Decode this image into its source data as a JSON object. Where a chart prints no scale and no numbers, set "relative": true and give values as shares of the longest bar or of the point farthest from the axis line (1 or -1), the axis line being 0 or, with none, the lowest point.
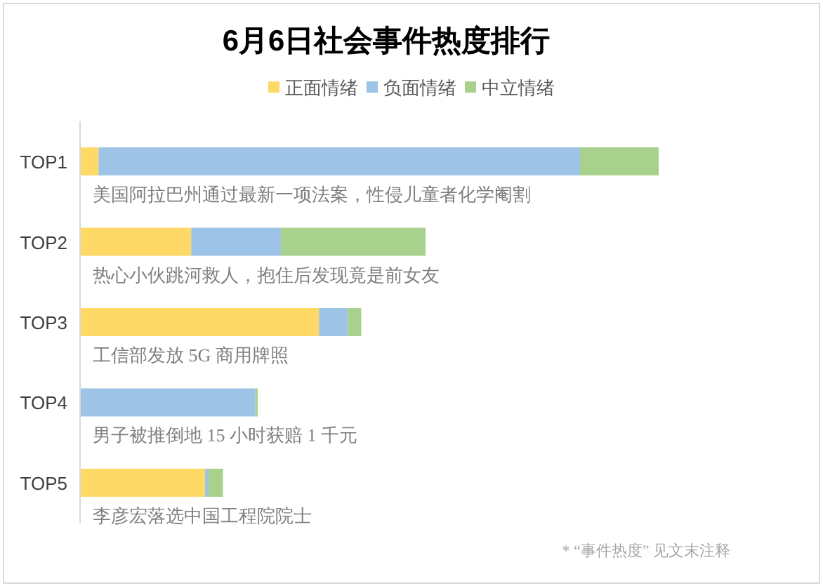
{
  "chart_data": {
    "type": "bar",
    "orientation": "horizontal",
    "stacked": true,
    "relative": true,
    "title": "6月6日社会事件热度排行",
    "legend": "top",
    "categories": [
      "TOP1",
      "TOP2",
      "TOP3",
      "TOP4",
      "TOP5"
    ],
    "series": [
      {
        "name": "正面情绪",
        "color": "#ffd966",
        "values": [
          0.032,
          0.192,
          0.413,
          0,
          0.216
        ]
      },
      {
        "name": "负面情绪",
        "color": "#9dc3e6",
        "values": [
          0.832,
          0.155,
          0.049,
          0.303,
          0.006
        ]
      },
      {
        "name": "中立情绪",
        "color": "#a9d18e",
        "values": [
          0.136,
          0.25,
          0.024,
          0.004,
          0.025
        ]
      }
    ],
    "annotations": [
      "美国阿拉巴州通过最新一项法案，性侵儿童者化学阉割",
      "热心小伙跳河救人，抱住后发现竟是前女友",
      "工信部发放 5G 商用牌照",
      "男子被推倒地 15 小时获赔 1 千元",
      "李彦宏落选中国工程院院士",
      "* “事件热度” 见文末注释"
    ]
  }
}
